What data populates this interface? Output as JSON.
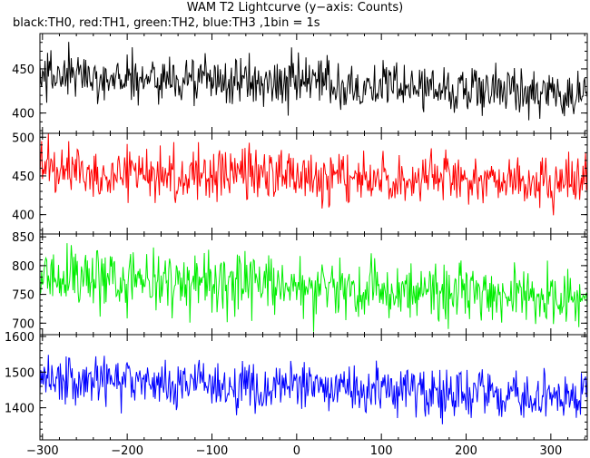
{
  "title": "WAM T2 Lightcurve (y−axis: Counts)",
  "subtitle": "black:TH0, red:TH1, green:TH2, blue:TH3 ,1bin = 1s",
  "chart_data": [
    {
      "type": "line",
      "series": [
        {
          "name": "TH0",
          "color": "#000000",
          "mean_start": 443,
          "mean_end": 423,
          "noise": 14
        }
      ],
      "xlim": [
        -303,
        343
      ],
      "ylim": [
        377,
        490
      ],
      "xticks": [
        -300,
        -200,
        -100,
        0,
        100,
        200,
        300
      ],
      "yticks": [
        400,
        450
      ],
      "show_xtick_labels": false
    },
    {
      "type": "line",
      "series": [
        {
          "name": "TH1",
          "color": "#ff0000",
          "mean_start": 458,
          "mean_end": 440,
          "noise": 17
        }
      ],
      "xlim": [
        -303,
        343
      ],
      "ylim": [
        375,
        505
      ],
      "xticks": [
        -300,
        -200,
        -100,
        0,
        100,
        200,
        300
      ],
      "yticks": [
        400,
        450,
        500
      ],
      "show_xtick_labels": false
    },
    {
      "type": "line",
      "series": [
        {
          "name": "TH2",
          "color": "#00ee00",
          "mean_start": 783,
          "mean_end": 740,
          "noise": 26
        }
      ],
      "xlim": [
        -303,
        343
      ],
      "ylim": [
        680,
        855
      ],
      "xticks": [
        -300,
        -200,
        -100,
        0,
        100,
        200,
        300
      ],
      "yticks": [
        700,
        750,
        800,
        850
      ],
      "show_xtick_labels": false
    },
    {
      "type": "line",
      "series": [
        {
          "name": "TH3",
          "color": "#0000ff",
          "mean_start": 1480,
          "mean_end": 1430,
          "noise": 34
        }
      ],
      "xlim": [
        -303,
        343
      ],
      "ylim": [
        1310,
        1605
      ],
      "xticks": [
        -300,
        -200,
        -100,
        0,
        100,
        200,
        300
      ],
      "yticks": [
        1400,
        1500,
        1600
      ],
      "show_xtick_labels": true
    }
  ]
}
